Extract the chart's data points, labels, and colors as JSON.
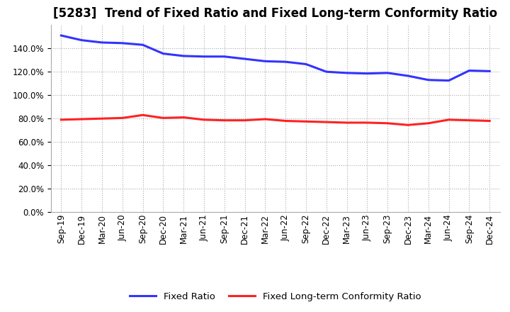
{
  "title": "[5283]  Trend of Fixed Ratio and Fixed Long-term Conformity Ratio",
  "x_labels": [
    "Sep-19",
    "Dec-19",
    "Mar-20",
    "Jun-20",
    "Sep-20",
    "Dec-20",
    "Mar-21",
    "Jun-21",
    "Sep-21",
    "Dec-21",
    "Mar-22",
    "Jun-22",
    "Sep-22",
    "Dec-22",
    "Mar-23",
    "Jun-23",
    "Sep-23",
    "Dec-23",
    "Mar-24",
    "Jun-24",
    "Sep-24",
    "Dec-24"
  ],
  "fixed_ratio": [
    151.0,
    147.0,
    145.0,
    144.5,
    143.0,
    135.5,
    133.5,
    133.0,
    133.0,
    131.0,
    129.0,
    128.5,
    126.5,
    120.0,
    119.0,
    118.5,
    119.0,
    116.5,
    113.0,
    112.5,
    121.0,
    120.5
  ],
  "fixed_lt_ratio": [
    79.0,
    79.5,
    80.0,
    80.5,
    83.0,
    80.5,
    81.0,
    79.0,
    78.5,
    78.5,
    79.5,
    78.0,
    77.5,
    77.0,
    76.5,
    76.5,
    76.0,
    74.5,
    76.0,
    79.0,
    78.5,
    78.0
  ],
  "fixed_ratio_color": "#3333FF",
  "fixed_lt_ratio_color": "#FF2222",
  "ylim": [
    0,
    160
  ],
  "yticks": [
    0,
    20,
    40,
    60,
    80,
    100,
    120,
    140
  ],
  "background_color": "#FFFFFF",
  "plot_bg_color": "#FFFFFF",
  "grid_color": "#AAAAAA",
  "line_width": 2.2,
  "legend_fixed_ratio": "Fixed Ratio",
  "legend_fixed_lt_ratio": "Fixed Long-term Conformity Ratio",
  "title_fontsize": 12,
  "tick_fontsize": 8.5
}
